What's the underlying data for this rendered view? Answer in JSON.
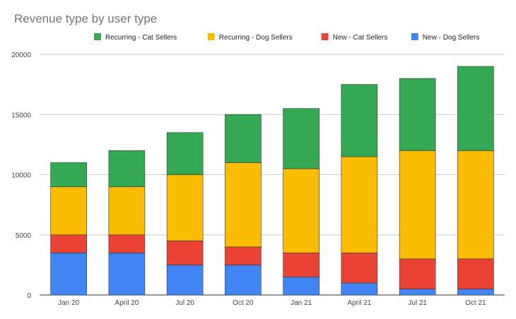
{
  "chart_data": {
    "type": "bar",
    "stacked": true,
    "title": "Revenue type by user type",
    "xlabel": "",
    "ylabel": "",
    "categories": [
      "Jan 20",
      "April 20",
      "Jul 20",
      "Oct 20",
      "Jan 21",
      "April 21",
      "Jul 21",
      "Oct 21"
    ],
    "series": [
      {
        "name": "New - Dog Sellers",
        "color": "#4285f4",
        "values": [
          3500,
          3500,
          2500,
          2500,
          1500,
          1000,
          500,
          500
        ]
      },
      {
        "name": "New - Cat Sellers",
        "color": "#ea4335",
        "values": [
          1500,
          1500,
          2000,
          1500,
          2000,
          2500,
          2500,
          2500
        ]
      },
      {
        "name": "Recurring - Dog Sellers",
        "color": "#fbbc04",
        "values": [
          4000,
          4000,
          5500,
          7000,
          7000,
          8000,
          9000,
          9000
        ]
      },
      {
        "name": "Recurring - Cat Sellers",
        "color": "#34a853",
        "values": [
          2000,
          3000,
          3500,
          4000,
          5000,
          6000,
          6000,
          7000
        ]
      }
    ],
    "legend_order": [
      "Recurring - Cat Sellers",
      "Recurring - Dog Sellers",
      "New - Cat Sellers",
      "New - Dog Sellers"
    ],
    "legend_position": "top",
    "ylim": [
      0,
      20000
    ],
    "yticks": [
      0,
      5000,
      10000,
      15000,
      20000
    ],
    "grid": true
  }
}
